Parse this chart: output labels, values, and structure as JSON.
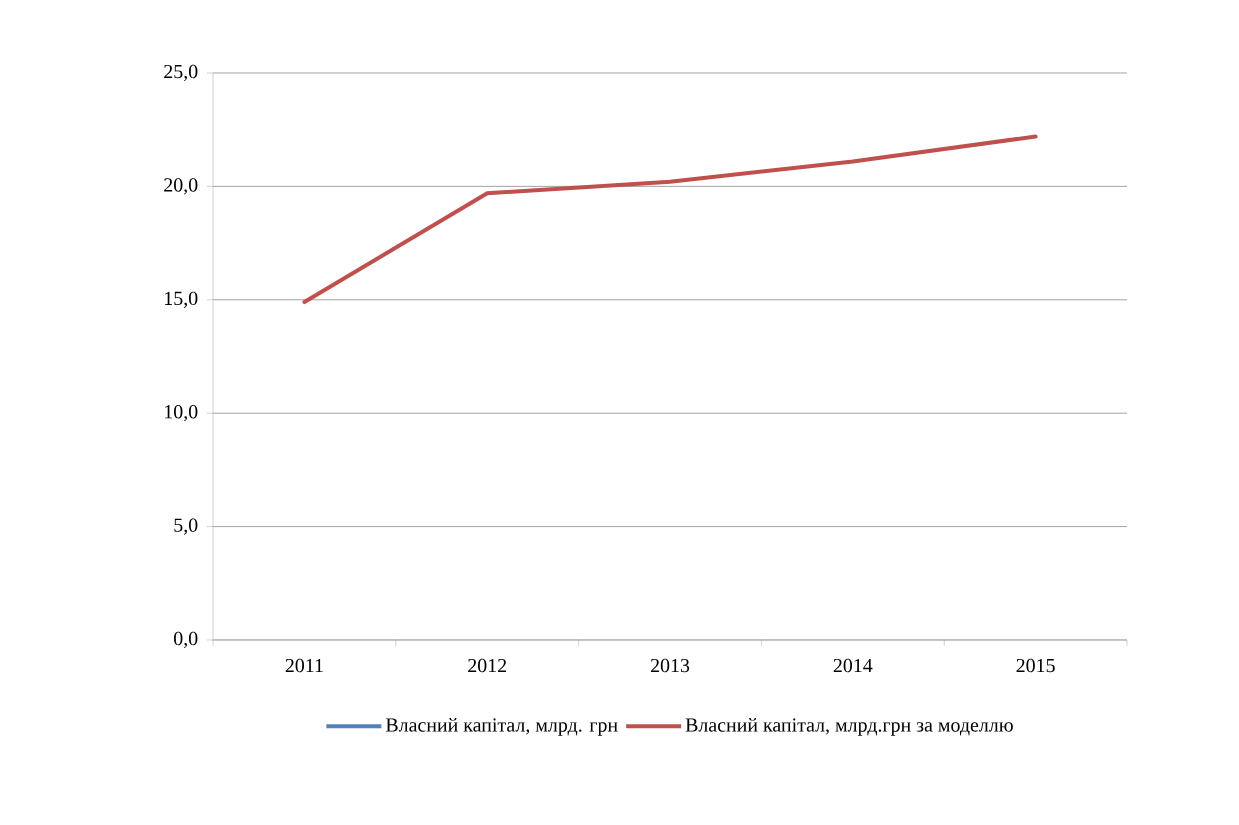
{
  "chart_data": {
    "type": "line",
    "categories": [
      "2011",
      "2012",
      "2013",
      "2014",
      "2015"
    ],
    "series": [
      {
        "name": "Власний капітал,  млрд. грн",
        "color": "#4f81bd",
        "values": [
          null,
          null,
          null,
          null,
          null
        ]
      },
      {
        "name": "Власний капітал, млрд.грн за моделлю",
        "color": "#c0504d",
        "values": [
          14.9,
          19.7,
          20.2,
          21.1,
          22.2
        ]
      }
    ],
    "ylim": [
      0,
      25
    ],
    "yticks": [
      {
        "value": 0,
        "label": "0,0"
      },
      {
        "value": 5,
        "label": "5,0"
      },
      {
        "value": 10,
        "label": "10,0"
      },
      {
        "value": 15,
        "label": "15,0"
      },
      {
        "value": 20,
        "label": "20,0"
      },
      {
        "value": 25,
        "label": "25,0"
      }
    ],
    "grid": "y",
    "legend": "bottom",
    "marker": "none",
    "line_style": "solid"
  }
}
